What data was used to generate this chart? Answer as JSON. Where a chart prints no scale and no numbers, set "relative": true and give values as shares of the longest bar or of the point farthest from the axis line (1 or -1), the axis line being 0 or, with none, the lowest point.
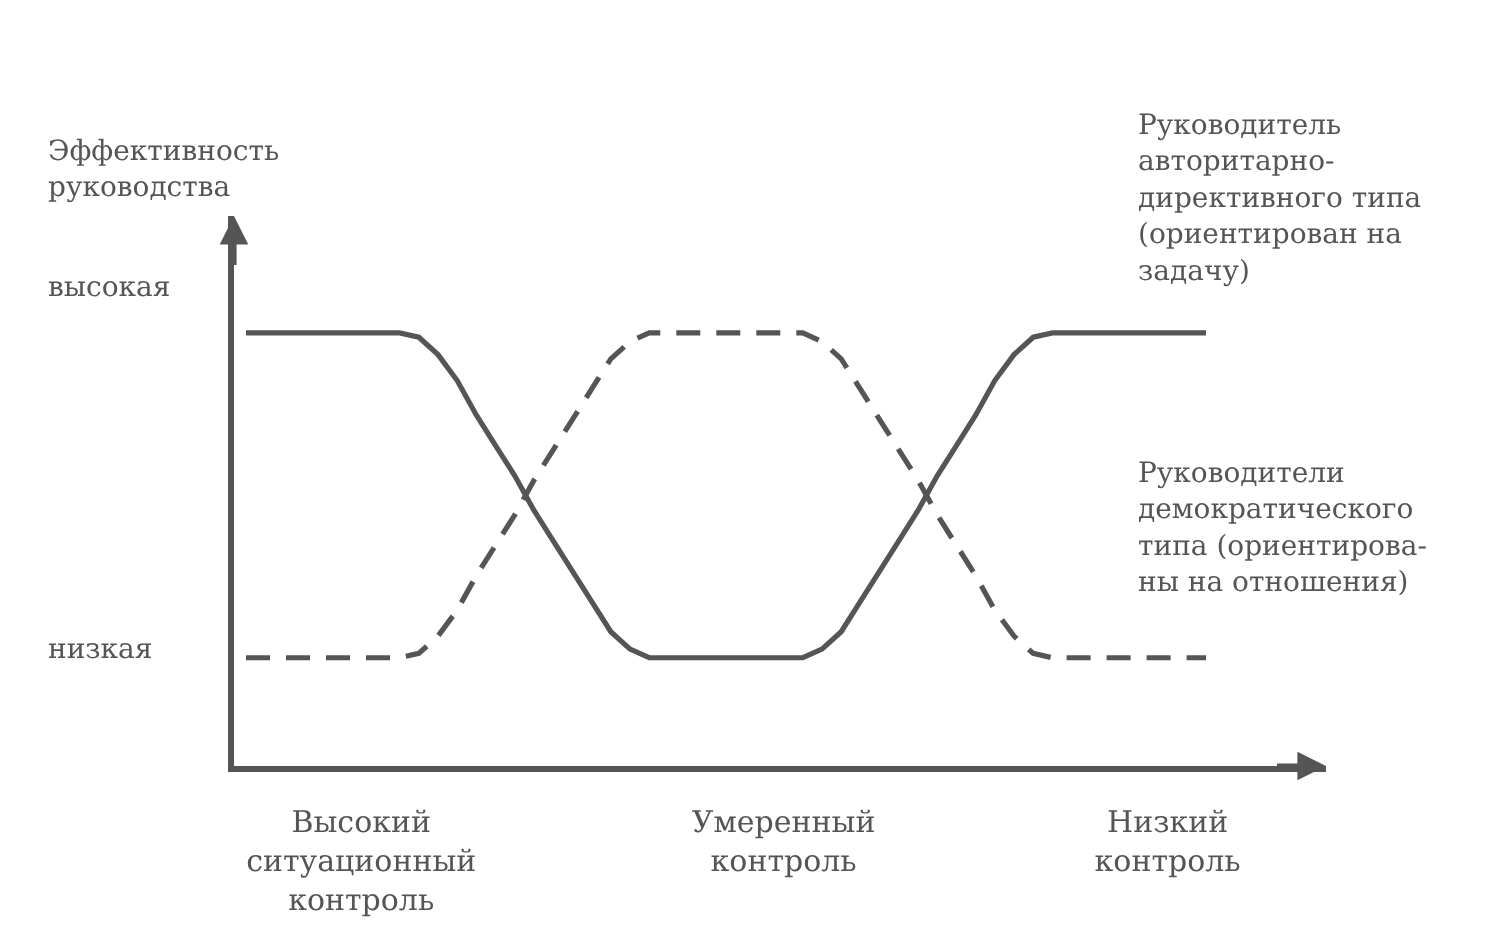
{
  "chart_data": {
    "type": "line",
    "relative": true,
    "ylabel": "Эффективность\nруководства",
    "categories": [
      null,
      null,
      null,
      null,
      null,
      null,
      "Высокий\nситуационный\nконтроль",
      null,
      null,
      null,
      null,
      null,
      null,
      null,
      null,
      null,
      null,
      null,
      null,
      null,
      null,
      null,
      null,
      null,
      null,
      null,
      null,
      null,
      "Умеренный\nконтроль",
      null,
      null,
      null,
      null,
      null,
      null,
      null,
      null,
      null,
      null,
      null,
      null,
      null,
      null,
      null,
      null,
      null,
      null,
      null,
      "Низкий\nконтроль",
      null,
      null
    ],
    "series": [
      {
        "name": "Руководитель\nавторитарно-\nдирективного типа\n(ориентирован на\nзадачу)",
        "color": "#555555",
        "line_style": "solid",
        "values": [
          1,
          1,
          1,
          1,
          1,
          1,
          1,
          1,
          1,
          0.99,
          0.95,
          0.89,
          0.81,
          0.74,
          0.67,
          0.59,
          0.52,
          0.45,
          0.38,
          0.31,
          0.27,
          0.25,
          0.25,
          0.25,
          0.25,
          0.25,
          0.25,
          0.25,
          0.25,
          0.25,
          0.27,
          0.31,
          0.38,
          0.45,
          0.52,
          0.59,
          0.67,
          0.74,
          0.81,
          0.89,
          0.95,
          0.99,
          1,
          1,
          1,
          1,
          1,
          1,
          1,
          1,
          1
        ]
      },
      {
        "name": "Руководители\nдемократического\nтипа (ориентирова-\nны на отношения)",
        "color": "#555555",
        "line_style": "dashed",
        "values": [
          0.25,
          0.25,
          0.25,
          0.25,
          0.25,
          0.25,
          0.25,
          0.25,
          0.25,
          0.26,
          0.3,
          0.36,
          0.44,
          0.51,
          0.58,
          0.66,
          0.73,
          0.8,
          0.87,
          0.94,
          0.98,
          1,
          1,
          1,
          1,
          1,
          1,
          1,
          1,
          1,
          0.98,
          0.94,
          0.87,
          0.8,
          0.73,
          0.66,
          0.58,
          0.51,
          0.44,
          0.36,
          0.3,
          0.26,
          0.25,
          0.25,
          0.25,
          0.25,
          0.25,
          0.25,
          0.25,
          0.25,
          0.25
        ]
      }
    ],
    "annotations": [
      "высокая",
      "низкая"
    ],
    "legend": false
  }
}
